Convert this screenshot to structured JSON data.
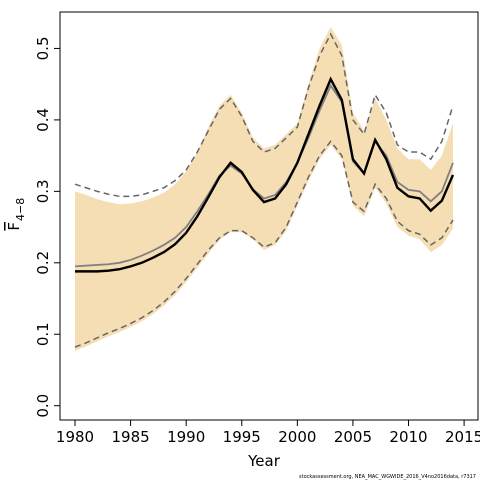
{
  "chart_data": {
    "type": "line",
    "xlabel": "Year",
    "ylabel": "F",
    "ylabel_sub": "4−8",
    "footnote": "stockassessment.org, NEA_MAC_WGWIDE_2016_V4no2016data, r7317",
    "x": [
      1980,
      1981,
      1982,
      1983,
      1984,
      1985,
      1986,
      1987,
      1988,
      1989,
      1990,
      1991,
      1992,
      1993,
      1994,
      1995,
      1996,
      1997,
      1998,
      1999,
      2000,
      2001,
      2002,
      2003,
      2004,
      2005,
      2006,
      2007,
      2008,
      2009,
      2010,
      2011,
      2012,
      2013,
      2014
    ],
    "band": {
      "color": "#f5deb3",
      "upper": [
        0.3,
        0.295,
        0.289,
        0.285,
        0.282,
        0.283,
        0.286,
        0.291,
        0.298,
        0.31,
        0.328,
        0.355,
        0.39,
        0.42,
        0.435,
        0.41,
        0.375,
        0.36,
        0.365,
        0.38,
        0.395,
        0.45,
        0.5,
        0.53,
        0.505,
        0.41,
        0.385,
        0.43,
        0.4,
        0.36,
        0.345,
        0.345,
        0.33,
        0.35,
        0.395
      ],
      "lower": [
        0.077,
        0.083,
        0.09,
        0.097,
        0.103,
        0.11,
        0.118,
        0.128,
        0.14,
        0.155,
        0.173,
        0.193,
        0.213,
        0.232,
        0.243,
        0.243,
        0.233,
        0.218,
        0.225,
        0.245,
        0.28,
        0.315,
        0.345,
        0.365,
        0.345,
        0.28,
        0.265,
        0.305,
        0.283,
        0.25,
        0.238,
        0.233,
        0.215,
        0.225,
        0.248
      ]
    },
    "series": [
      {
        "color": "#666666",
        "style": "dashed",
        "values": [
          0.31,
          0.305,
          0.3,
          0.296,
          0.293,
          0.293,
          0.295,
          0.3,
          0.305,
          0.315,
          0.33,
          0.355,
          0.385,
          0.415,
          0.43,
          0.405,
          0.37,
          0.355,
          0.36,
          0.375,
          0.39,
          0.445,
          0.49,
          0.52,
          0.49,
          0.4,
          0.38,
          0.435,
          0.41,
          0.365,
          0.355,
          0.355,
          0.345,
          0.37,
          0.42
        ]
      },
      {
        "color": "#666666",
        "style": "dashed",
        "values": [
          0.082,
          0.088,
          0.095,
          0.102,
          0.108,
          0.115,
          0.123,
          0.133,
          0.145,
          0.16,
          0.178,
          0.198,
          0.218,
          0.235,
          0.245,
          0.245,
          0.235,
          0.222,
          0.228,
          0.25,
          0.285,
          0.32,
          0.35,
          0.37,
          0.35,
          0.285,
          0.272,
          0.31,
          0.29,
          0.258,
          0.245,
          0.24,
          0.225,
          0.235,
          0.26
        ]
      },
      {
        "color": "#808080",
        "style": "solid",
        "width": 1.8,
        "values": [
          0.195,
          0.196,
          0.197,
          0.198,
          0.2,
          0.204,
          0.21,
          0.217,
          0.225,
          0.235,
          0.25,
          0.272,
          0.296,
          0.322,
          0.336,
          0.325,
          0.303,
          0.29,
          0.295,
          0.313,
          0.34,
          0.375,
          0.413,
          0.448,
          0.425,
          0.342,
          0.325,
          0.37,
          0.35,
          0.313,
          0.302,
          0.3,
          0.286,
          0.3,
          0.34
        ]
      },
      {
        "color": "#000000",
        "style": "solid",
        "width": 2.4,
        "values": [
          0.188,
          0.188,
          0.188,
          0.189,
          0.191,
          0.195,
          0.2,
          0.207,
          0.215,
          0.226,
          0.242,
          0.265,
          0.292,
          0.32,
          0.34,
          0.327,
          0.302,
          0.285,
          0.29,
          0.31,
          0.34,
          0.38,
          0.42,
          0.457,
          0.428,
          0.345,
          0.325,
          0.372,
          0.345,
          0.305,
          0.293,
          0.29,
          0.273,
          0.287,
          0.323
        ]
      }
    ],
    "xlim": [
      1978.65,
      2016.25
    ],
    "ylim": [
      -0.02,
      0.551
    ],
    "xticks": [
      1980,
      1985,
      1990,
      1995,
      2000,
      2005,
      2010,
      2015
    ],
    "yticks": [
      {
        "value": 0,
        "label": "0.0"
      },
      0.1,
      0.2,
      0.3,
      0.4,
      0.5
    ]
  }
}
